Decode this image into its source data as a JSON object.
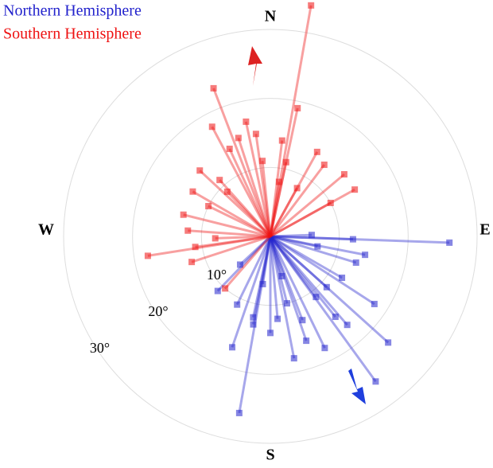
{
  "chart_data": {
    "type": "polar-scatter",
    "direction_labels": [
      "N",
      "E",
      "S",
      "W"
    ],
    "rlim": [
      0,
      30
    ],
    "rticks": [
      {
        "value": 10,
        "label": "10°"
      },
      {
        "value": 20,
        "label": "20°"
      },
      {
        "value": 30,
        "label": "30°"
      }
    ],
    "grid": true,
    "legend": "top-left",
    "series": [
      {
        "name": "Northern Hemisphere",
        "color": "#2222cc",
        "theta": [
          190,
          92,
          132,
          144,
          199,
          101,
          123,
          139,
          154,
          169,
          180,
          191,
          224,
          102,
          120,
          143,
          166,
          189,
          227,
          107,
          141,
          161,
          175,
          206,
          88,
          92,
          159,
          164,
          192,
          132
        ],
        "r": [
          26,
          26,
          23,
          26,
          17,
          14,
          18,
          17,
          18,
          18,
          14,
          13,
          11,
          7,
          12,
          11,
          10,
          7,
          6,
          13,
          15,
          16,
          12,
          11,
          6,
          12,
          13,
          6,
          12,
          11
        ]
      },
      {
        "name": "Southern Hemisphere",
        "color": "#ee1111",
        "theta": [
          10,
          339,
          261,
          12,
          332,
          50,
          29,
          61,
          252,
          221,
          300,
          313,
          352,
          7,
          335,
          354,
          37,
          284,
          274,
          342,
          348,
          318,
          296,
          29,
          61,
          9,
          268,
          12,
          262,
          316
        ],
        "r": [
          34,
          23,
          18,
          19,
          18,
          14,
          14,
          14,
          12,
          10,
          13,
          14,
          15,
          14,
          14,
          11,
          13,
          13,
          12,
          15,
          17,
          11,
          10,
          8,
          10,
          8,
          8,
          11,
          11,
          9
        ]
      }
    ]
  }
}
